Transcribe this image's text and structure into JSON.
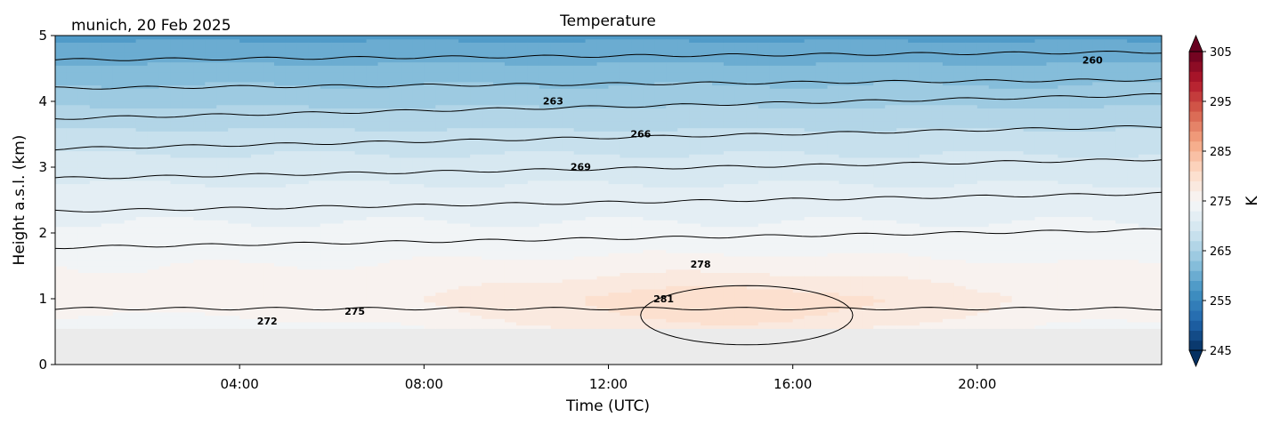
{
  "chart_data": {
    "type": "heatmap",
    "title": "Temperature",
    "subtitle": "munich, 20 Feb 2025",
    "xlabel": "Time (UTC)",
    "ylabel": "Height a.s.l. (km)",
    "x_unit": "hours UTC",
    "xlim": [
      0,
      24
    ],
    "ylim": [
      0,
      5
    ],
    "x_ticks": [
      {
        "value": 4,
        "label": "04:00"
      },
      {
        "value": 8,
        "label": "08:00"
      },
      {
        "value": 12,
        "label": "12:00"
      },
      {
        "value": 16,
        "label": "16:00"
      },
      {
        "value": 20,
        "label": "20:00"
      }
    ],
    "y_ticks": [
      {
        "value": 0,
        "label": "0"
      },
      {
        "value": 1,
        "label": "1"
      },
      {
        "value": 2,
        "label": "2"
      },
      {
        "value": 3,
        "label": "3"
      },
      {
        "value": 4,
        "label": "4"
      },
      {
        "value": 5,
        "label": "5"
      }
    ],
    "data_height_range_km": [
      0.55,
      5
    ],
    "no_data_color": "#ebebeb",
    "colormap": "RdBu_r",
    "colorbar": {
      "label": "K",
      "min": 245,
      "max": 305,
      "step": 2,
      "ticks": [
        "245",
        "255",
        "265",
        "275",
        "285",
        "295",
        "305"
      ],
      "extend": "both"
    },
    "temperature_profile": [
      {
        "height_km": 0.55,
        "temp_k": 274.0
      },
      {
        "height_km": 1.0,
        "temp_k": 276.0
      },
      {
        "height_km": 1.5,
        "temp_k": 275.0
      },
      {
        "height_km": 2.0,
        "temp_k": 273.5
      },
      {
        "height_km": 2.5,
        "temp_k": 272.0
      },
      {
        "height_km": 3.0,
        "temp_k": 270.0
      },
      {
        "height_km": 3.5,
        "temp_k": 267.5
      },
      {
        "height_km": 4.0,
        "temp_k": 264.5
      },
      {
        "height_km": 4.5,
        "temp_k": 261.5
      },
      {
        "height_km": 5.0,
        "temp_k": 258.5
      }
    ],
    "daytime_warm_anomaly": {
      "peak_hour": 14.5,
      "peak_height_km": 0.8,
      "max_increase_k": 5
    },
    "contour_lines": [
      {
        "level": 260,
        "label": "260",
        "label_x": 22.5,
        "label_y": 4.63,
        "y_start": 4.63,
        "y_end": 4.75
      },
      {
        "level": 261,
        "label": "",
        "y_start": 4.2,
        "y_end": 4.33
      },
      {
        "level": 262,
        "label": "",
        "y_start": 3.74,
        "y_end": 4.1
      },
      {
        "level": 263,
        "label": "263",
        "label_x": 10.8,
        "label_y": 4.01,
        "y_start": 3.28,
        "y_end": 3.62
      },
      {
        "level": 264,
        "label": "",
        "y_start": 2.83,
        "y_end": 3.12
      },
      {
        "level": 265,
        "label": "",
        "y_start": 2.33,
        "y_end": 2.6
      },
      {
        "level": 266,
        "label": "266",
        "label_x": 12.7,
        "label_y": 3.51,
        "y_start": 1.78,
        "y_end": 2.05
      },
      {
        "level": 269,
        "label": "269",
        "label_x": 11.4,
        "label_y": 3.01,
        "y_start": 0.85,
        "y_end": 0.85
      }
    ],
    "contour_labels": [
      {
        "text": "260",
        "x": 22.5,
        "y": 4.63
      },
      {
        "text": "263",
        "x": 10.8,
        "y": 4.01
      },
      {
        "text": "266",
        "x": 12.7,
        "y": 3.51
      },
      {
        "text": "269",
        "x": 11.4,
        "y": 3.01
      },
      {
        "text": "272",
        "x": 4.6,
        "y": 0.66
      },
      {
        "text": "275",
        "x": 6.5,
        "y": 0.81
      },
      {
        "text": "278",
        "x": 14.0,
        "y": 1.53
      },
      {
        "text": "281",
        "x": 13.2,
        "y": 1.0
      }
    ],
    "legend": "none",
    "grid": false
  }
}
